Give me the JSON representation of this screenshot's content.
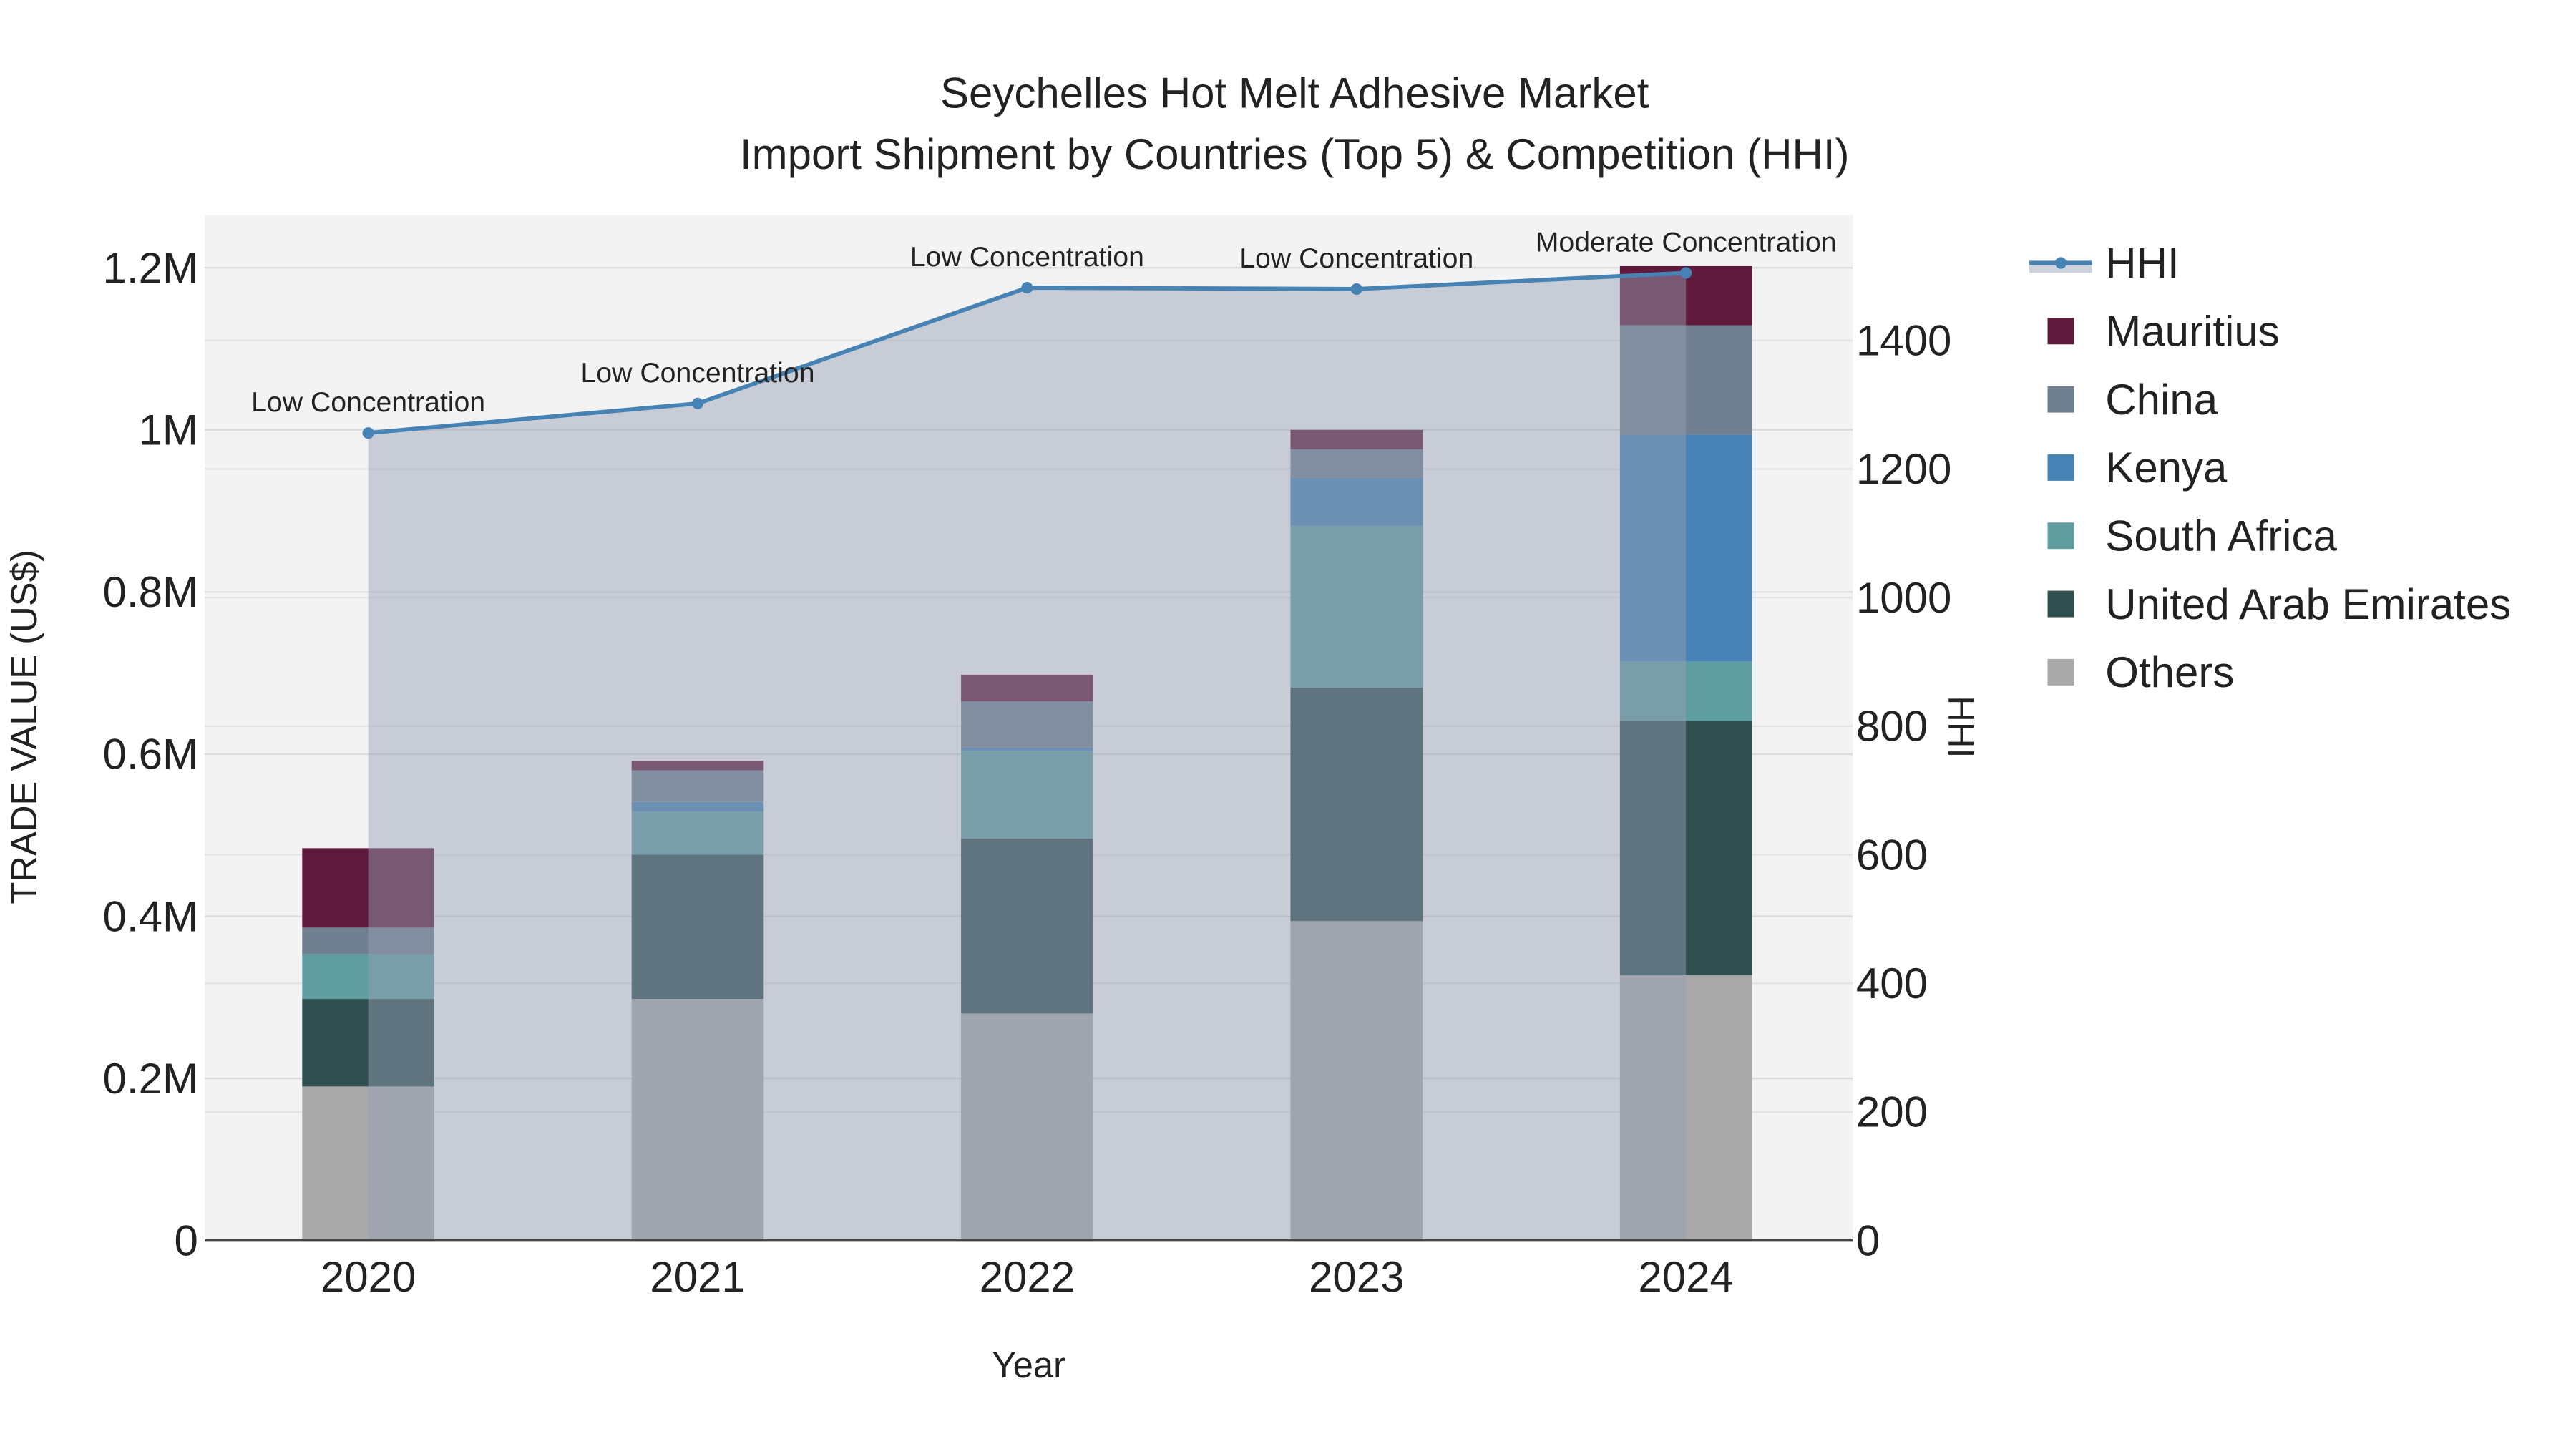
{
  "chart_data": {
    "type": "bar",
    "title": "Seychelles Hot Melt Adhesive Market",
    "subtitle": "Import Shipment by Countries (Top 5) & Competition (HHI)",
    "xlabel": "Year",
    "ylabel": "TRADE VALUE (US$)",
    "y2label": "HHI",
    "categories": [
      "2020",
      "2021",
      "2022",
      "2023",
      "2024"
    ],
    "ylim": [
      0,
      1265000
    ],
    "y2lim": [
      0,
      1595
    ],
    "yticks": [
      {
        "v": 0,
        "label": "0"
      },
      {
        "v": 200000,
        "label": "0.2M"
      },
      {
        "v": 400000,
        "label": "0.4M"
      },
      {
        "v": 600000,
        "label": "0.6M"
      },
      {
        "v": 800000,
        "label": "0.8M"
      },
      {
        "v": 1000000,
        "label": "1M"
      },
      {
        "v": 1200000,
        "label": "1.2M"
      }
    ],
    "y2ticks": [
      0,
      200,
      400,
      600,
      800,
      1000,
      1200,
      1400
    ],
    "grid": true,
    "legend_position": "right",
    "stacked": true,
    "series": [
      {
        "name": "Others",
        "color": "#a9a9a9",
        "values": [
          190000,
          298000,
          280000,
          394000,
          327000
        ]
      },
      {
        "name": "United Arab Emirates",
        "color": "#2f4f4f",
        "values": [
          108000,
          178000,
          216000,
          288000,
          314000
        ]
      },
      {
        "name": "South Africa",
        "color": "#5f9ea0",
        "values": [
          55000,
          53000,
          108000,
          200000,
          73000
        ]
      },
      {
        "name": "Kenya",
        "color": "#4682b4",
        "values": [
          0,
          12000,
          4000,
          59000,
          280000
        ]
      },
      {
        "name": "China",
        "color": "#708090",
        "values": [
          33000,
          39000,
          57000,
          35000,
          135000
        ]
      },
      {
        "name": "Mauritius",
        "color": "#5f1a3c",
        "values": [
          98000,
          12000,
          33000,
          24000,
          73000
        ]
      }
    ],
    "line": {
      "name": "HHI",
      "color": "#4682b4",
      "axis": "right",
      "values": [
        1256,
        1302,
        1482,
        1480,
        1505
      ],
      "annotations": [
        "Low Concentration",
        "Low Concentration",
        "Low Concentration",
        "Low Concentration",
        "Moderate Concentration"
      ]
    },
    "legend": [
      "HHI",
      "Mauritius",
      "China",
      "Kenya",
      "South Africa",
      "United Arab Emirates",
      "Others"
    ]
  }
}
